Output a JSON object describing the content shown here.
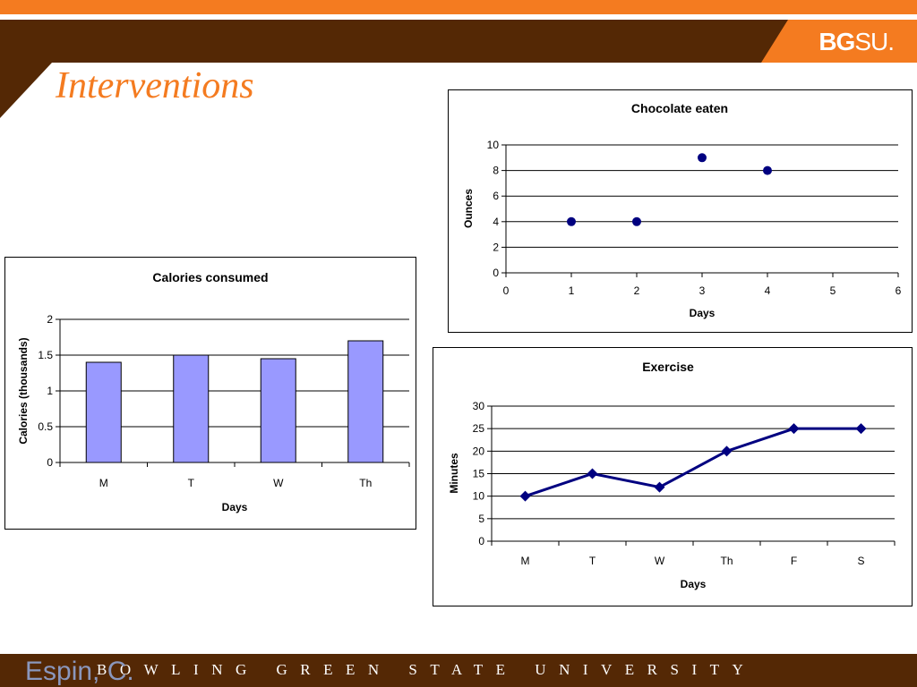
{
  "slide": {
    "title": "Interventions",
    "logo": {
      "bold": "BG",
      "rest": "SU",
      "dot": "."
    },
    "footer_text": "BOWLING GREEN STATE UNIVERSITY",
    "author": "Espin, C."
  },
  "colors": {
    "orange": "#f47b20",
    "brown": "#542805",
    "navy": "#000080",
    "bar_fill": "#9999ff"
  },
  "chart_data": [
    {
      "id": "calories",
      "type": "bar",
      "title": "Calories consumed",
      "xlabel": "Days",
      "ylabel": "Calories (thousands)",
      "categories": [
        "M",
        "T",
        "W",
        "Th"
      ],
      "values": [
        1.4,
        1.5,
        1.45,
        1.7
      ],
      "ylim": [
        0,
        2
      ],
      "yticks": [
        0,
        0.5,
        1,
        1.5,
        2
      ],
      "ytick_labels": [
        "0",
        "0.5",
        "1",
        "1.5",
        "2"
      ],
      "grid": true,
      "legend": "none"
    },
    {
      "id": "chocolate",
      "type": "scatter",
      "title": "Chocolate eaten",
      "xlabel": "Days",
      "ylabel": "Ounces",
      "x": [
        1,
        2,
        3,
        4
      ],
      "y": [
        4,
        4,
        9,
        8
      ],
      "xlim": [
        0,
        6
      ],
      "ylim": [
        0,
        10
      ],
      "xticks": [
        0,
        1,
        2,
        3,
        4,
        5,
        6
      ],
      "yticks": [
        0,
        2,
        4,
        6,
        8,
        10
      ],
      "grid": true,
      "legend": "none"
    },
    {
      "id": "exercise",
      "type": "line",
      "title": "Exercise",
      "xlabel": "Days",
      "ylabel": "Minutes",
      "categories": [
        "M",
        "T",
        "W",
        "Th",
        "F",
        "S"
      ],
      "values": [
        10,
        15,
        12,
        20,
        25,
        25
      ],
      "ylim": [
        0,
        30
      ],
      "yticks": [
        0,
        5,
        10,
        15,
        20,
        25,
        30
      ],
      "marker": "diamond",
      "grid": true,
      "legend": "none"
    }
  ]
}
